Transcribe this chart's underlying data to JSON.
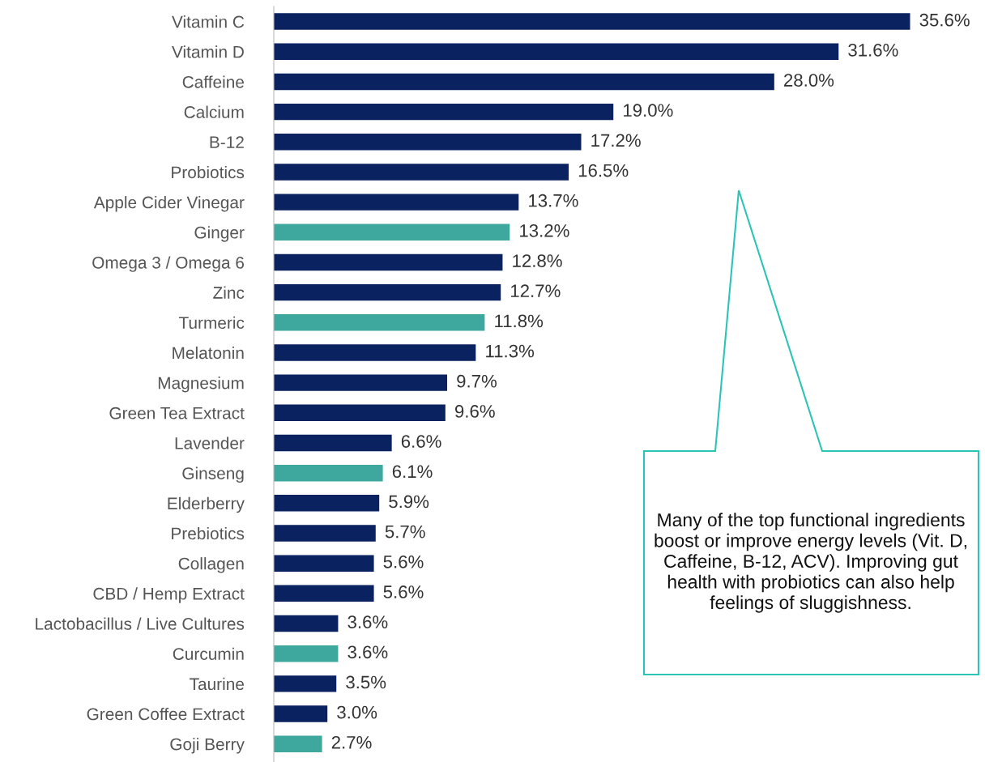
{
  "chart_data": {
    "type": "bar",
    "orientation": "horizontal",
    "data_labels": true,
    "categories": [
      "Vitamin C",
      "Vitamin D",
      "Caffeine",
      "Calcium",
      "B-12",
      "Probiotics",
      "Apple Cider Vinegar",
      "Ginger",
      "Omega 3 / Omega 6",
      "Zinc",
      "Turmeric",
      "Melatonin",
      "Magnesium",
      "Green Tea Extract",
      "Lavender",
      "Ginseng",
      "Elderberry",
      "Prebiotics",
      "Collagen",
      "CBD / Hemp Extract",
      "Lactobacillus / Live Cultures",
      "Curcumin",
      "Taurine",
      "Green Coffee Extract",
      "Goji Berry"
    ],
    "values": [
      35.6,
      31.6,
      28.0,
      19.0,
      17.2,
      16.5,
      13.7,
      13.2,
      12.8,
      12.7,
      11.8,
      11.3,
      9.7,
      9.6,
      6.6,
      6.1,
      5.9,
      5.7,
      5.6,
      5.6,
      3.6,
      3.6,
      3.5,
      3.0,
      2.7
    ],
    "value_labels": [
      "35.6%",
      "31.6%",
      "28.0%",
      "19.0%",
      "17.2%",
      "16.5%",
      "13.7%",
      "13.2%",
      "12.8%",
      "12.7%",
      "11.8%",
      "11.3%",
      "9.7%",
      "9.6%",
      "6.6%",
      "6.1%",
      "5.9%",
      "5.7%",
      "5.6%",
      "5.6%",
      "3.6%",
      "3.6%",
      "3.5%",
      "3.0%",
      "2.7%"
    ],
    "colors": [
      "#0b2260",
      "#0b2260",
      "#0b2260",
      "#0b2260",
      "#0b2260",
      "#0b2260",
      "#0b2260",
      "#3fa89e",
      "#0b2260",
      "#0b2260",
      "#3fa89e",
      "#0b2260",
      "#0b2260",
      "#0b2260",
      "#0b2260",
      "#3fa89e",
      "#0b2260",
      "#0b2260",
      "#0b2260",
      "#0b2260",
      "#0b2260",
      "#3fa89e",
      "#0b2260",
      "#0b2260",
      "#3fa89e"
    ],
    "annotations": [
      "Many of the top functional ingredients boost or improve energy levels (Vit. D, Caffeine, B-12, ACV). Improving gut health with probiotics can also help feelings of sluggishness."
    ]
  }
}
